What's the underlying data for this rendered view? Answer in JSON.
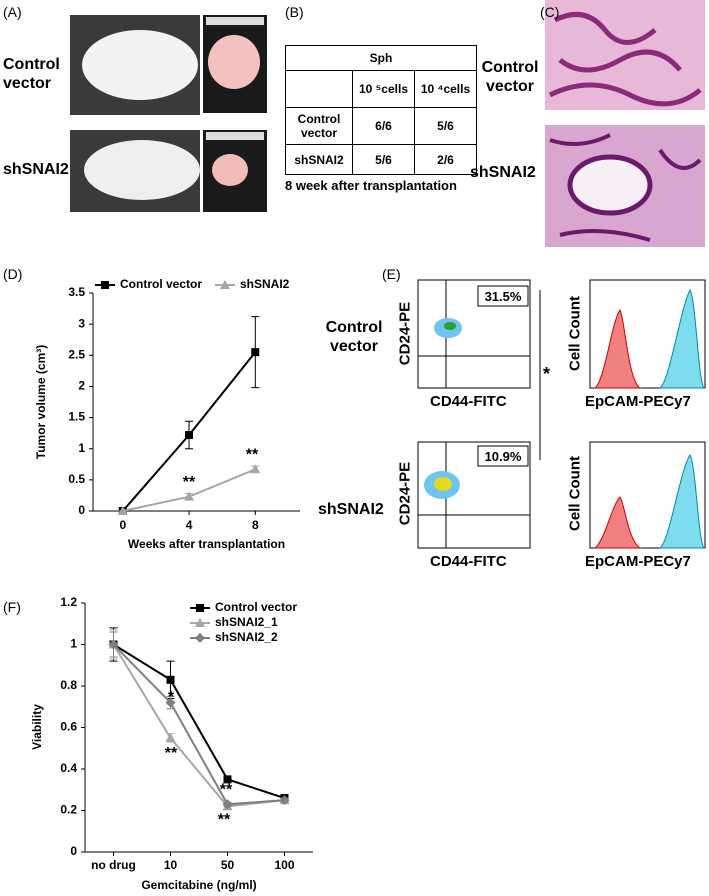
{
  "panel_labels": [
    "(A)",
    "(B)",
    "(C)",
    "(D)",
    "(E)",
    "(F)"
  ],
  "panel_a": {
    "rows": [
      "Control vector",
      "shSNAI2"
    ]
  },
  "table": {
    "header": "Sph",
    "columns": [
      "10 ⁵cells",
      "10 ⁴cells"
    ],
    "rows": [
      [
        "Control vector",
        "6/6",
        "5/6"
      ],
      [
        "shSNAI2",
        "5/6",
        "2/6"
      ]
    ],
    "caption": "8 week after transplantation"
  },
  "panel_c": {
    "rows": [
      "Control vector",
      "shSNAI2"
    ]
  },
  "panel_e": {
    "rows": [
      {
        "label": "Control vector",
        "percent": "31.5%"
      },
      {
        "label": "shSNAI2",
        "percent": "10.9%"
      }
    ],
    "y_axis": "CD24-PE",
    "x_axis": "CD44-FITC",
    "hist_y_axis": "Cell Count",
    "hist_x_axis": "EpCAM-PECy7",
    "significance": "*"
  },
  "chart_data": [
    {
      "type": "line",
      "ylabel": "Tumor volume (cm³)",
      "xlabel": "Weeks after transplantation",
      "x": [
        0,
        4,
        8
      ],
      "xlim": [
        -1.8,
        10.7
      ],
      "xticks": [
        0,
        4,
        8
      ],
      "ylim": [
        0,
        3.5
      ],
      "yticks": [
        0,
        0.5,
        1,
        1.5,
        2,
        2.5,
        3,
        3.5
      ],
      "series": [
        {
          "name": "Control vector",
          "color": "#000000",
          "marker": "square",
          "values": [
            0,
            1.22,
            2.55
          ],
          "errors": [
            0,
            0.22,
            0.57
          ]
        },
        {
          "name": "shSNAI2",
          "color": "#a6a6a6",
          "marker": "triangle",
          "values": [
            0,
            0.23,
            0.67
          ],
          "errors": [
            0,
            0.05,
            0.05
          ]
        }
      ],
      "annotations": [
        "**",
        "**"
      ],
      "legend": "top"
    },
    {
      "type": "line",
      "ylabel": "Viability",
      "xlabel": "Gemcitabine (ng/ml)",
      "categories": [
        "no drug",
        "10",
        "50",
        "100"
      ],
      "ylim": [
        0,
        1.2
      ],
      "yticks": [
        0,
        0.2,
        0.4,
        0.6,
        0.8,
        1,
        1.2
      ],
      "series": [
        {
          "name": "Control vector",
          "color": "#000000",
          "marker": "square",
          "values": [
            1.0,
            0.83,
            0.35,
            0.26
          ],
          "errors": [
            0.08,
            0.09,
            0.005,
            0.01
          ]
        },
        {
          "name": "shSNAI2_1",
          "color": "#a6a6a6",
          "marker": "triangle",
          "values": [
            1.0,
            0.55,
            0.22,
            0.25
          ],
          "errors": [
            0.07,
            0.02,
            0.01,
            0.01
          ]
        },
        {
          "name": "shSNAI2_2",
          "color": "#7f7f7f",
          "marker": "diamond",
          "values": [
            1.0,
            0.72,
            0.23,
            0.25
          ],
          "errors": [
            0.06,
            0.03,
            0.01,
            0.01
          ]
        }
      ],
      "annotations": [
        "*",
        "**",
        "**",
        "**"
      ],
      "legend": "top-right"
    }
  ]
}
